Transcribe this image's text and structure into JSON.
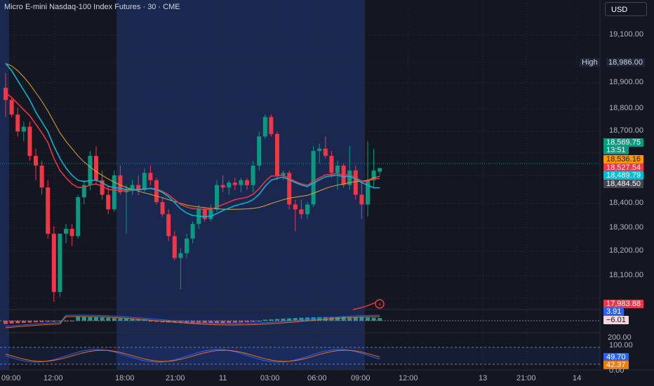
{
  "header": {
    "title": "Micro E-mini Nasdaq-100 Index Futures · 30 · CME",
    "currency": "USD"
  },
  "price_axis": {
    "labels": [
      "19,100.00",
      "18,900.00",
      "18,800.00",
      "18,700.00",
      "18,400.00",
      "18,300.00",
      "18,200.00",
      "18,100.00"
    ]
  },
  "high": {
    "label": "High",
    "value": "18,986.00"
  },
  "price_tags": [
    {
      "value": "18,569.75",
      "color": "#089981"
    },
    {
      "value": "13:51",
      "color": "#089981"
    },
    {
      "value": "18,536.16",
      "color": "#ff9800"
    },
    {
      "value": "18,527.54",
      "color": "#f23645"
    },
    {
      "value": "18,489.79",
      "color": "#00bcd4"
    },
    {
      "value": "18,484.50",
      "color": "#434651"
    }
  ],
  "volume_tag": {
    "value": "17,983.88"
  },
  "macd_tags": [
    {
      "value": "3.91",
      "color": "#2962ff"
    },
    {
      "value": "−6.01",
      "color": "#f8d7dc"
    }
  ],
  "macd_axis": {
    "label": "200.00"
  },
  "stoch_axis": {
    "labels": [
      "100.00",
      "0.00"
    ]
  },
  "stoch_tags": [
    {
      "value": "49.70",
      "color": "#2962ff"
    },
    {
      "value": "42.37",
      "color": "#f57c00"
    }
  ],
  "time_axis": {
    "labels": [
      "09:00",
      "12:00",
      "18:00",
      "21:00",
      "11",
      "03:00",
      "06:00",
      "09:00",
      "12:00",
      "13",
      "21:00",
      "14"
    ]
  },
  "colors": {
    "up": "#089981",
    "down": "#f23645",
    "bg": "#131722",
    "session": "#1c2a55",
    "sma_slow": "#e0a52e",
    "ema_fast": "#f23645",
    "ema_mid": "#00bcd4"
  },
  "chart_data": {
    "type": "candlestick",
    "y_range": [
      18020,
      19160
    ],
    "candles": [
      {
        "o": 18900,
        "h": 18960,
        "l": 18780,
        "c": 18850
      },
      {
        "o": 18850,
        "h": 18860,
        "l": 18780,
        "c": 18790
      },
      {
        "o": 18790,
        "h": 18820,
        "l": 18700,
        "c": 18720
      },
      {
        "o": 18720,
        "h": 18760,
        "l": 18680,
        "c": 18740
      },
      {
        "o": 18740,
        "h": 18760,
        "l": 18600,
        "c": 18620
      },
      {
        "o": 18620,
        "h": 18650,
        "l": 18520,
        "c": 18580
      },
      {
        "o": 18580,
        "h": 18600,
        "l": 18460,
        "c": 18490
      },
      {
        "o": 18490,
        "h": 18520,
        "l": 18280,
        "c": 18300
      },
      {
        "o": 18300,
        "h": 18330,
        "l": 18020,
        "c": 18060
      },
      {
        "o": 18060,
        "h": 18300,
        "l": 18040,
        "c": 18300
      },
      {
        "o": 18300,
        "h": 18340,
        "l": 18260,
        "c": 18320
      },
      {
        "o": 18320,
        "h": 18340,
        "l": 18250,
        "c": 18290
      },
      {
        "o": 18290,
        "h": 18460,
        "l": 18280,
        "c": 18450
      },
      {
        "o": 18450,
        "h": 18520,
        "l": 18420,
        "c": 18500
      },
      {
        "o": 18500,
        "h": 18640,
        "l": 18480,
        "c": 18620
      },
      {
        "o": 18620,
        "h": 18660,
        "l": 18500,
        "c": 18520
      },
      {
        "o": 18520,
        "h": 18560,
        "l": 18440,
        "c": 18460
      },
      {
        "o": 18460,
        "h": 18500,
        "l": 18380,
        "c": 18400
      },
      {
        "o": 18400,
        "h": 18560,
        "l": 18390,
        "c": 18540
      },
      {
        "o": 18540,
        "h": 18580,
        "l": 18460,
        "c": 18470
      },
      {
        "o": 18470,
        "h": 18500,
        "l": 18300,
        "c": 18480
      },
      {
        "o": 18480,
        "h": 18520,
        "l": 18460,
        "c": 18500
      },
      {
        "o": 18500,
        "h": 18540,
        "l": 18460,
        "c": 18480
      },
      {
        "o": 18480,
        "h": 18570,
        "l": 18470,
        "c": 18550
      },
      {
        "o": 18550,
        "h": 18580,
        "l": 18500,
        "c": 18520
      },
      {
        "o": 18520,
        "h": 18530,
        "l": 18420,
        "c": 18430
      },
      {
        "o": 18430,
        "h": 18450,
        "l": 18370,
        "c": 18380
      },
      {
        "o": 18380,
        "h": 18400,
        "l": 18270,
        "c": 18290
      },
      {
        "o": 18290,
        "h": 18310,
        "l": 18190,
        "c": 18200
      },
      {
        "o": 18200,
        "h": 18240,
        "l": 18070,
        "c": 18220
      },
      {
        "o": 18220,
        "h": 18300,
        "l": 18200,
        "c": 18280
      },
      {
        "o": 18280,
        "h": 18350,
        "l": 18260,
        "c": 18340
      },
      {
        "o": 18340,
        "h": 18420,
        "l": 18320,
        "c": 18400
      },
      {
        "o": 18400,
        "h": 18410,
        "l": 18350,
        "c": 18360
      },
      {
        "o": 18360,
        "h": 18420,
        "l": 18350,
        "c": 18400
      },
      {
        "o": 18400,
        "h": 18520,
        "l": 18390,
        "c": 18500
      },
      {
        "o": 18500,
        "h": 18540,
        "l": 18470,
        "c": 18490
      },
      {
        "o": 18490,
        "h": 18520,
        "l": 18460,
        "c": 18510
      },
      {
        "o": 18510,
        "h": 18530,
        "l": 18480,
        "c": 18500
      },
      {
        "o": 18500,
        "h": 18530,
        "l": 18470,
        "c": 18520
      },
      {
        "o": 18520,
        "h": 18530,
        "l": 18480,
        "c": 18500
      },
      {
        "o": 18500,
        "h": 18600,
        "l": 18470,
        "c": 18580
      },
      {
        "o": 18580,
        "h": 18720,
        "l": 18560,
        "c": 18700
      },
      {
        "o": 18700,
        "h": 18790,
        "l": 18690,
        "c": 18780
      },
      {
        "o": 18780,
        "h": 18790,
        "l": 18700,
        "c": 18710
      },
      {
        "o": 18710,
        "h": 18720,
        "l": 18520,
        "c": 18540
      },
      {
        "o": 18540,
        "h": 18560,
        "l": 18520,
        "c": 18550
      },
      {
        "o": 18550,
        "h": 18560,
        "l": 18400,
        "c": 18420
      },
      {
        "o": 18420,
        "h": 18440,
        "l": 18310,
        "c": 18400
      },
      {
        "o": 18400,
        "h": 18440,
        "l": 18360,
        "c": 18380
      },
      {
        "o": 18380,
        "h": 18430,
        "l": 18360,
        "c": 18420
      },
      {
        "o": 18420,
        "h": 18660,
        "l": 18410,
        "c": 18640
      },
      {
        "o": 18640,
        "h": 18670,
        "l": 18590,
        "c": 18650
      },
      {
        "o": 18650,
        "h": 18700,
        "l": 18610,
        "c": 18620
      },
      {
        "o": 18620,
        "h": 18640,
        "l": 18530,
        "c": 18550
      },
      {
        "o": 18550,
        "h": 18600,
        "l": 18480,
        "c": 18580
      },
      {
        "o": 18580,
        "h": 18590,
        "l": 18490,
        "c": 18500
      },
      {
        "o": 18500,
        "h": 18660,
        "l": 18480,
        "c": 18560
      },
      {
        "o": 18560,
        "h": 18580,
        "l": 18440,
        "c": 18460
      },
      {
        "o": 18460,
        "h": 18520,
        "l": 18360,
        "c": 18420
      },
      {
        "o": 18420,
        "h": 18680,
        "l": 18370,
        "c": 18520
      },
      {
        "o": 18520,
        "h": 18650,
        "l": 18490,
        "c": 18560
      },
      {
        "o": 18555,
        "h": 18570,
        "l": 18540,
        "c": 18570
      }
    ],
    "sma_slow": [
      19000,
      18990,
      18970,
      18945,
      18915,
      18880,
      18845,
      18805,
      18760,
      18715,
      18680,
      18650,
      18620,
      18595,
      18575,
      18555,
      18540,
      18525,
      18512,
      18500,
      18490,
      18482,
      18475,
      18468,
      18462,
      18455,
      18448,
      18440,
      18432,
      18425,
      18418,
      18413,
      18410,
      18407,
      18404,
      18402,
      18401,
      18400,
      18400,
      18401,
      18402,
      18404,
      18408,
      18415,
      18424,
      18432,
      18440,
      18446,
      18450,
      18454,
      18458,
      18466,
      18476,
      18486,
      18494,
      18500,
      18505,
      18510,
      18514,
      18516,
      18520,
      18530,
      18536
    ],
    "ema_fast": [
      18880,
      18860,
      18835,
      18810,
      18785,
      18750,
      18715,
      18675,
      18610,
      18560,
      18530,
      18505,
      18490,
      18490,
      18500,
      18505,
      18495,
      18482,
      18480,
      18478,
      18475,
      18478,
      18479,
      18484,
      18487,
      18484,
      18474,
      18460,
      18440,
      18420,
      18410,
      18403,
      18402,
      18400,
      18400,
      18410,
      18420,
      18430,
      18440,
      18445,
      18450,
      18462,
      18485,
      18515,
      18537,
      18538,
      18540,
      18527,
      18515,
      18505,
      18499,
      18515,
      18530,
      18542,
      18544,
      18548,
      18540,
      18542,
      18532,
      18515,
      18515,
      18525,
      18527
    ],
    "ema_mid": [
      19000,
      18970,
      18930,
      18890,
      18850,
      18800,
      18760,
      18720,
      18660,
      18610,
      18570,
      18540,
      18520,
      18515,
      18518,
      18520,
      18510,
      18495,
      18490,
      18486,
      18482,
      18482,
      18481,
      18484,
      18486,
      18481,
      18470,
      18452,
      18428,
      18402,
      18385,
      18375,
      18372,
      18370,
      18372,
      18383,
      18395,
      18405,
      18415,
      18422,
      18428,
      18440,
      18462,
      18495,
      18520,
      18528,
      18533,
      18522,
      18510,
      18500,
      18494,
      18508,
      18522,
      18534,
      18538,
      18541,
      18534,
      18536,
      18526,
      18510,
      18500,
      18488,
      18489
    ]
  }
}
